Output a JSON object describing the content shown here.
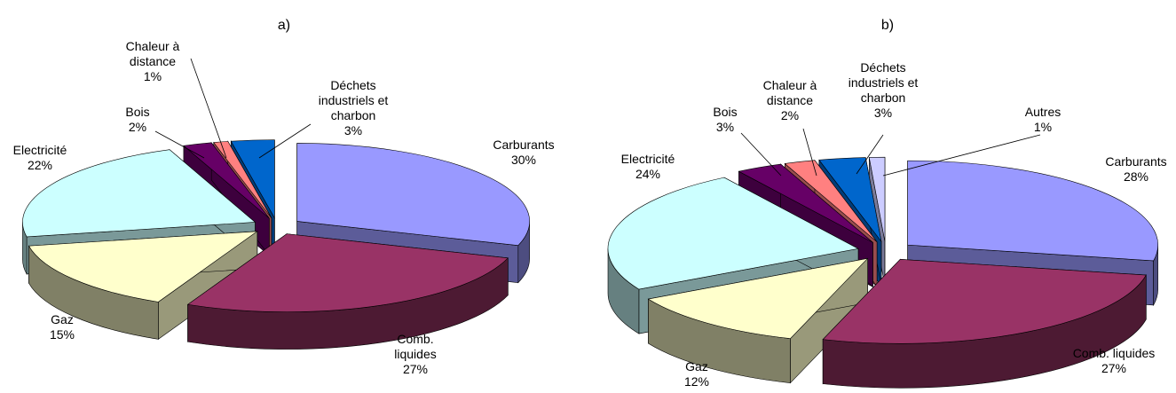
{
  "chart_data": [
    {
      "type": "pie3d",
      "title": "a)",
      "categories": [
        "Carburants",
        "Comb. liquides",
        "Gaz",
        "Electricité",
        "Bois",
        "Chaleur à distance",
        "Déchets industriels et charbon"
      ],
      "values": [
        30,
        27,
        15,
        22,
        2,
        1,
        3
      ],
      "value_labels": [
        "30%",
        "27%",
        "15%",
        "22%",
        "2%",
        "1%",
        "3%"
      ],
      "colors": [
        "#9999ff",
        "#993366",
        "#ffffcc",
        "#ccffff",
        "#660066",
        "#ff8080",
        "#0066cc"
      ]
    },
    {
      "type": "pie3d",
      "title": "b)",
      "categories": [
        "Carburants",
        "Comb. liquides",
        "Gaz",
        "Electricité",
        "Bois",
        "Chaleur à distance",
        "Déchets industriels et charbon",
        "Autres"
      ],
      "values": [
        28,
        27,
        12,
        24,
        3,
        2,
        3,
        1
      ],
      "value_labels": [
        "28%",
        "27%",
        "12%",
        "24%",
        "3%",
        "2%",
        "3%",
        "1%"
      ],
      "colors": [
        "#9999ff",
        "#993366",
        "#ffffcc",
        "#ccffff",
        "#660066",
        "#ff8080",
        "#0066cc",
        "#ccccff"
      ]
    }
  ]
}
